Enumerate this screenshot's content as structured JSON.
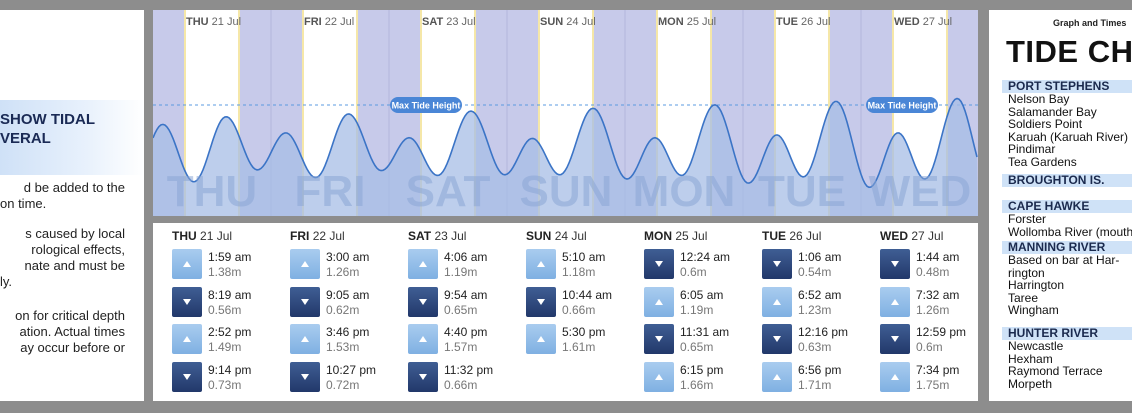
{
  "left": {
    "heading_lines": [
      "SHOW TIDAL",
      "VERAL"
    ],
    "paragraphs": [
      [
        "d be added to the",
        "on time."
      ],
      [
        "s caused by local",
        "rological effects,",
        "nate and must be",
        "ly."
      ],
      [
        "on for critical depth",
        "ation. Actual times",
        "ay occur before or"
      ]
    ]
  },
  "graph": {
    "max_tide_label": "Max Tide Height",
    "days": [
      {
        "abbr": "THU",
        "date": "21 Jul",
        "big": "THU"
      },
      {
        "abbr": "FRI",
        "date": "22 Jul",
        "big": "FRI"
      },
      {
        "abbr": "SAT",
        "date": "23 Jul",
        "big": "SAT"
      },
      {
        "abbr": "SUN",
        "date": "24 Jul",
        "big": "SUN"
      },
      {
        "abbr": "MON",
        "date": "25 Jul",
        "big": "MON"
      },
      {
        "abbr": "TUE",
        "date": "26 Jul",
        "big": "TUE"
      },
      {
        "abbr": "WED",
        "date": "27 Jul",
        "big": "WED"
      }
    ],
    "colors": {
      "night": "#c7caea",
      "day": "#ffffff",
      "wave_fill": "#a7bee6",
      "wave_line": "#3b74c6",
      "dash": "#5b9be0",
      "badge": "#4a86d6"
    }
  },
  "times": [
    {
      "abbr": "THU",
      "date": "21 Jul",
      "tides": [
        {
          "dir": "up",
          "time": "1:59 am",
          "height": "1.38m"
        },
        {
          "dir": "down",
          "time": "8:19 am",
          "height": "0.56m"
        },
        {
          "dir": "up",
          "time": "2:52 pm",
          "height": "1.49m"
        },
        {
          "dir": "down",
          "time": "9:14 pm",
          "height": "0.73m"
        }
      ]
    },
    {
      "abbr": "FRI",
      "date": "22 Jul",
      "tides": [
        {
          "dir": "up",
          "time": "3:00 am",
          "height": "1.26m"
        },
        {
          "dir": "down",
          "time": "9:05 am",
          "height": "0.62m"
        },
        {
          "dir": "up",
          "time": "3:46 pm",
          "height": "1.53m"
        },
        {
          "dir": "down",
          "time": "10:27 pm",
          "height": "0.72m"
        }
      ]
    },
    {
      "abbr": "SAT",
      "date": "23 Jul",
      "tides": [
        {
          "dir": "up",
          "time": "4:06 am",
          "height": "1.19m"
        },
        {
          "dir": "down",
          "time": "9:54 am",
          "height": "0.65m"
        },
        {
          "dir": "up",
          "time": "4:40 pm",
          "height": "1.57m"
        },
        {
          "dir": "down",
          "time": "11:32 pm",
          "height": "0.66m"
        }
      ]
    },
    {
      "abbr": "SUN",
      "date": "24 Jul",
      "tides": [
        {
          "dir": "up",
          "time": "5:10 am",
          "height": "1.18m"
        },
        {
          "dir": "down",
          "time": "10:44 am",
          "height": "0.66m"
        },
        {
          "dir": "up",
          "time": "5:30 pm",
          "height": "1.61m"
        }
      ]
    },
    {
      "abbr": "MON",
      "date": "25 Jul",
      "tides": [
        {
          "dir": "down",
          "time": "12:24 am",
          "height": "0.6m"
        },
        {
          "dir": "up",
          "time": "6:05 am",
          "height": "1.19m"
        },
        {
          "dir": "down",
          "time": "11:31 am",
          "height": "0.65m"
        },
        {
          "dir": "up",
          "time": "6:15 pm",
          "height": "1.66m"
        }
      ]
    },
    {
      "abbr": "TUE",
      "date": "26 Jul",
      "tides": [
        {
          "dir": "down",
          "time": "1:06 am",
          "height": "0.54m"
        },
        {
          "dir": "up",
          "time": "6:52 am",
          "height": "1.23m"
        },
        {
          "dir": "down",
          "time": "12:16 pm",
          "height": "0.63m"
        },
        {
          "dir": "up",
          "time": "6:56 pm",
          "height": "1.71m"
        }
      ]
    },
    {
      "abbr": "WED",
      "date": "27 Jul",
      "tides": [
        {
          "dir": "down",
          "time": "1:44 am",
          "height": "0.48m"
        },
        {
          "dir": "up",
          "time": "7:32 am",
          "height": "1.26m"
        },
        {
          "dir": "down",
          "time": "12:59 pm",
          "height": "0.6m"
        },
        {
          "dir": "up",
          "time": "7:34 pm",
          "height": "1.75m"
        }
      ]
    }
  ],
  "right": {
    "caption": "Graph and Times",
    "title": "TIDE CH",
    "groups": [
      {
        "head": "PORT STEPHENS",
        "items": [
          "Nelson Bay",
          "Salamander Bay",
          "Soldiers Point",
          "Karuah (Karuah River)",
          "Pindimar",
          "Tea Gardens"
        ]
      },
      {
        "head": "BROUGHTON IS.",
        "items": []
      },
      {
        "head": "CAPE HAWKE",
        "items": [
          "Forster",
          "Wollomba River (mouth"
        ]
      },
      {
        "head": "MANNING RIVER",
        "items": [
          "Based on bar at Har-",
          "rington",
          "Harrington",
          "Taree",
          "Wingham"
        ]
      },
      {
        "head": "HUNTER RIVER",
        "items": [
          "Newcastle",
          "Hexham",
          "Raymond Terrace",
          "Morpeth"
        ]
      }
    ]
  }
}
